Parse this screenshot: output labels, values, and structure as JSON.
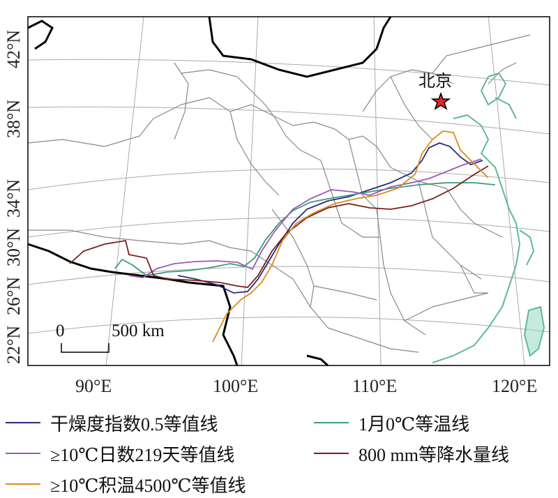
{
  "map": {
    "lat_labels": [
      "22°N",
      "26°N",
      "30°N",
      "34°N",
      "38°N",
      "42°N"
    ],
    "lon_labels": [
      "90°E",
      "100°E",
      "110°E",
      "120°E"
    ],
    "city": {
      "name": "北京",
      "marker": "red-star-icon"
    },
    "scale_bar": {
      "start": "0",
      "end": "500 km"
    }
  },
  "legend": [
    {
      "label": "干燥度指数0.5等值线",
      "color": "#2b2a7a"
    },
    {
      "label": "1月0℃等温线",
      "color": "#3a9b7a"
    },
    {
      "label": "≥10℃日数219天等值线",
      "color": "#9b59b6"
    },
    {
      "label": "800 mm等降水量线",
      "color": "#7a1f1f"
    },
    {
      "label": "≥10℃积温4500℃等值线",
      "color": "#d98c1a"
    }
  ],
  "colors": {
    "coast": "#5fb89a",
    "boundary": "#888888",
    "graticule": "#aaaaaa",
    "national_border": "#000000"
  }
}
